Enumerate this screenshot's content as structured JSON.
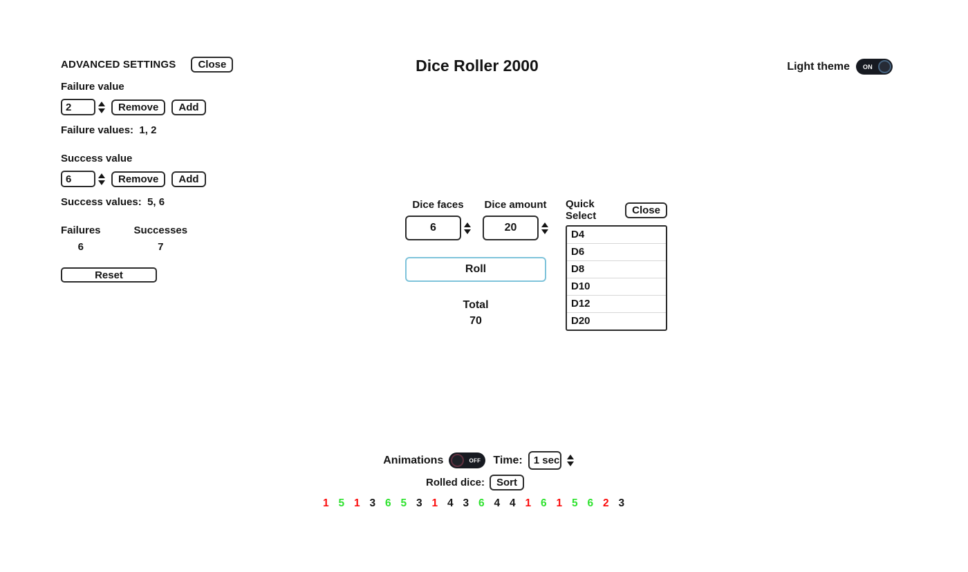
{
  "title": "Dice Roller 2000",
  "theme_toggle": {
    "label": "Light theme",
    "state": "ON"
  },
  "advanced_settings": {
    "heading": "ADVANCED SETTINGS",
    "close_label": "Close",
    "failure": {
      "label": "Failure value",
      "input_value": "2",
      "remove_label": "Remove",
      "add_label": "Add",
      "values_label": "Failure values:",
      "values_text": "1, 2"
    },
    "success": {
      "label": "Success value",
      "input_value": "6",
      "remove_label": "Remove",
      "add_label": "Add",
      "values_label": "Success values:",
      "values_text": "5, 6"
    },
    "counters": {
      "failures_label": "Failures",
      "failures_count": "6",
      "successes_label": "Successes",
      "successes_count": "7"
    },
    "reset_label": "Reset"
  },
  "dice_controls": {
    "faces_label": "Dice faces",
    "faces_value": "6",
    "amount_label": "Dice amount",
    "amount_value": "20",
    "roll_label": "Roll",
    "total_label": "Total",
    "total_value": "70"
  },
  "quick_select": {
    "heading": "Quick Select",
    "close_label": "Close",
    "items": [
      "D4",
      "D6",
      "D8",
      "D10",
      "D12",
      "D20"
    ]
  },
  "bottom": {
    "animations_label": "Animations",
    "animations_state": "OFF",
    "time_label": "Time:",
    "time_value": "1 sec",
    "rolled_dice_label": "Rolled dice:",
    "sort_label": "Sort"
  },
  "rolled_dice": {
    "values": [
      1,
      5,
      1,
      3,
      6,
      5,
      3,
      1,
      4,
      3,
      6,
      4,
      4,
      1,
      6,
      1,
      5,
      6,
      2,
      3
    ],
    "failure_values": [
      1,
      2
    ],
    "success_values": [
      5,
      6
    ],
    "colors": {
      "failure": "#fb0a0a",
      "success": "#2ee22e",
      "normal": "#141414"
    }
  }
}
